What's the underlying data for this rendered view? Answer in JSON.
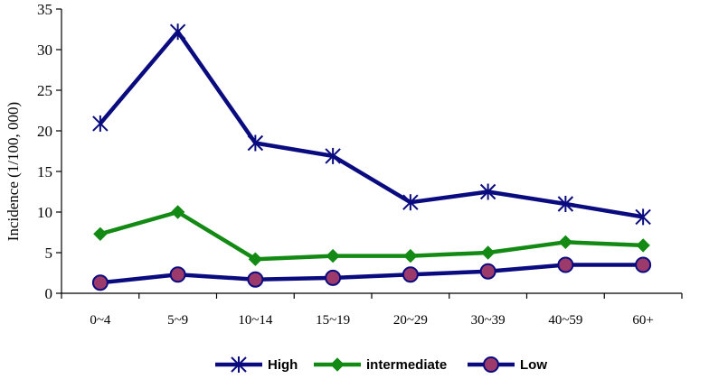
{
  "chart_data": {
    "type": "line",
    "ylabel": "Incidence (1/100, 000)",
    "xlabel": "",
    "categories": [
      "0~4",
      "5~9",
      "10~14",
      "15~19",
      "20~29",
      "30~39",
      "40~59",
      "60+"
    ],
    "ylim": [
      0,
      35
    ],
    "yticks": [
      0,
      5,
      10,
      15,
      20,
      25,
      30,
      35
    ],
    "grid": false,
    "legend_position": "bottom",
    "series": [
      {
        "name": "High",
        "marker": "asterisk",
        "color": "#0b0b80",
        "values": [
          20.9,
          32.2,
          18.5,
          16.9,
          11.2,
          12.5,
          11.0,
          9.4
        ]
      },
      {
        "name": "intermediate",
        "marker": "diamond",
        "color": "#138a13",
        "values": [
          7.3,
          10.0,
          4.2,
          4.6,
          4.6,
          5.0,
          6.3,
          5.9
        ]
      },
      {
        "name": "Low",
        "marker": "circle",
        "color": "#0b0b80",
        "markerFill": "#9b3a6b",
        "values": [
          1.3,
          2.3,
          1.7,
          1.9,
          2.3,
          2.7,
          3.5,
          3.5
        ]
      }
    ]
  }
}
